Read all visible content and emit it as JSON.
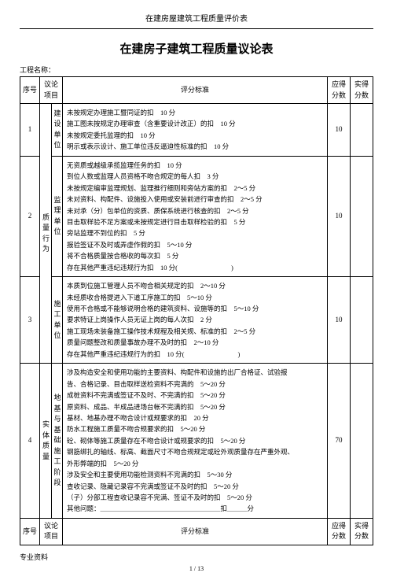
{
  "header": "在建房屋建筑工程质量评价表",
  "title": "在建房子建筑工程质量议论表",
  "project_label": "工程名称：",
  "cols": {
    "seq": "序号",
    "item": "议论项目",
    "criteria": "评分标准",
    "due": "应得分数",
    "act": "实得分数"
  },
  "rows": [
    {
      "seq": "1",
      "item_rowspan": 3,
      "item": "质量行为",
      "sub": "建设单位",
      "criteria": [
        "未按规定办理施工暨同证的扣　10 分",
        "施工图未按规定办理审查（含重要设计改正）的扣　10 分",
        "未按规定委托监理的扣　10 分",
        "明示或表示设计、施工单位违反逼迫性标准的扣　10 分"
      ],
      "due": "10"
    },
    {
      "seq": "2",
      "sub": "监理单位",
      "criteria": [
        "无资质或越级承揽监理任务的扣　10 分",
        "到位人数或监理人员资格不吻合规定的每人扣　3 分",
        "未按规定编审监理规划、监理推行细则和旁站方案的扣　2～5 分",
        "未对资料、构配件、设施投入使用或安装前进行审查的扣　2～5 分",
        "未对承（分）包单位的资质、质保系统进行核查的扣　2～5 分",
        "目击取样验不足方案或未按规定进行目击取样检验的扣　5 分",
        "旁站监理不到位的扣　5 分",
        "报验签证不及时或弄虚作假的扣　5～10 分",
        "将不合格质量按合格收的每次扣　5 分",
        "存在其他严重违纪违规行为扣　10 分(　　　　　　　　)"
      ],
      "due": "10"
    },
    {
      "seq": "3",
      "sub": "施工单位",
      "criteria": [
        "本质到位施工管理人员不吻合相关规定的扣　2～10 分",
        "未经质收合格提进入下道工序施工的扣　5～10 分",
        "使用不合格或不能够说明合格的建筑资料、设施等的扣　5～10 分",
        "要求特证上岗操作人员无证上岗的每人次扣　2 分",
        "施工现场未装备施工操作技术规程及相关规、标准的扣　2～5 分",
        "质量问题整改和质量事故办理不及时的扣　2～10 分",
        "存在其他严重违纪违规行为的扣　10 分(　　　　　　　　)"
      ],
      "due": "10"
    },
    {
      "seq": "4",
      "item": "实体质量",
      "sub": "地基与基础施工阶段",
      "criteria": [
        "涉及构造安全和使用功能的主要资料、构配件和设施的出厂合格证、试验报",
        "告、合格记录、目击取样送检资料不完满的　5～20 分",
        "成桩资料不完满或签证不及时、不完满的扣　5～20 分",
        "原资料、成品、半成品进场台帐不完满的扣　5～20 分",
        "基材、地基办理不吻合设计或规要求的扣　20 分",
        "防水工程施工质量不吻合规要求的扣　5～20 分",
        "砼、砌体等施工质量存在不吻合设计或规要求的扣　5～20 分",
        "钢筋绑扎的轴线、标高、截面尺寸不吻合规规定或砼外观质量存在严重外观、",
        "外形弊端的扣　5～20 分",
        "涉及安全和主要使用功能检测资料不完满的扣　5～30 分",
        "查收记录、隐藏记录容不完满或签证不及时的扣　5～20 分",
        "（子）分部工程查收记录容不完满、签证不及时的扣　5～20 分",
        "",
        "其他问题：＿＿＿＿＿＿＿＿＿＿＿＿＿＿＿＿＿＿扣＿＿＿分"
      ],
      "due": "70"
    }
  ],
  "footer_label": "专业资料",
  "page": "1 / 13"
}
